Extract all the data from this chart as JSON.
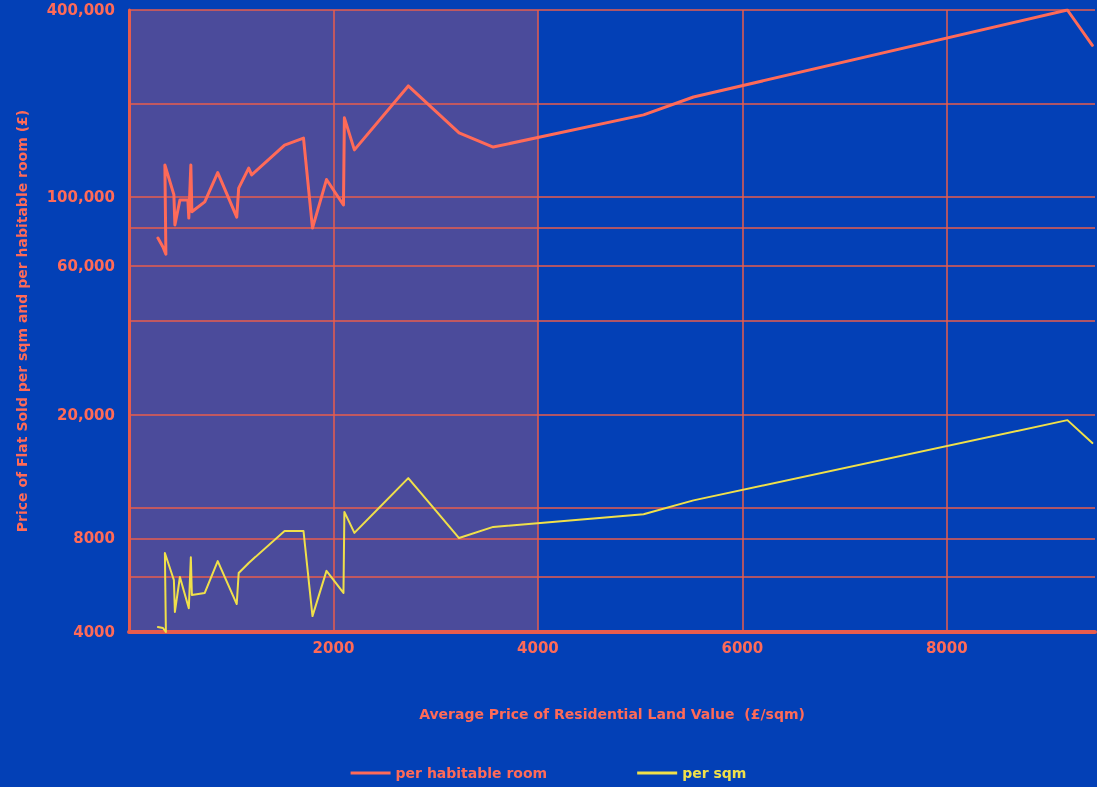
{
  "chart_data": {
    "type": "line",
    "xlabel": "Average Price of Residential Land Value  (£/sqm)",
    "ylabel": "Price of Flat Sold per sqm and per habitable room (£)",
    "log": "y",
    "grid": true,
    "legend": "bottom",
    "marker": "none",
    "line_style": "solid",
    "xlim": [
      0,
      9450
    ],
    "xticks": [
      2000,
      4000,
      6000,
      8000
    ],
    "ylim": [
      4000,
      400000
    ],
    "yticks": [
      4000,
      {
        "value": 6000,
        "label": null
      },
      8000,
      {
        "value": 10000,
        "label": null
      },
      {
        "value": 20000,
        "label": "20,000"
      },
      {
        "value": 40000,
        "label": null
      },
      {
        "value": 60000,
        "label": "60,000"
      },
      {
        "value": 80000,
        "label": null
      },
      {
        "value": 100000,
        "label": "100,000"
      },
      {
        "value": 200000,
        "label": null
      },
      {
        "value": 400000,
        "label": "400,000"
      }
    ],
    "bands": [
      {
        "axis": "x",
        "from": 0,
        "to": 4000,
        "color": "#4b4b9b"
      }
    ],
    "series": [
      {
        "name": "per habitable room",
        "color": "#ff6a58",
        "x": [
          283,
          332,
          361,
          351,
          439,
          449,
          498,
          576,
          585,
          605,
          615,
          741,
          868,
          1054,
          1073,
          1171,
          1200,
          1522,
          1707,
          1795,
          1932,
          2098,
          2107,
          2205,
          2732,
          3229,
          3563,
          5034,
          5522,
          9180,
          9424
        ],
        "values": [
          73900,
          69200,
          65600,
          127000,
          102000,
          81400,
          98000,
          98000,
          85700,
          127000,
          89800,
          96600,
          120000,
          86300,
          107000,
          124000,
          118000,
          147000,
          155000,
          79600,
          114000,
          94400,
          180000,
          142000,
          228000,
          161000,
          145000,
          184000,
          210000,
          400000,
          308000
        ]
      },
      {
        "name": "per sqm",
        "color": "#f0e04a",
        "x": [
          283,
          332,
          361,
          351,
          439,
          449,
          498,
          585,
          605,
          615,
          741,
          868,
          1054,
          1073,
          1171,
          1522,
          1707,
          1795,
          1932,
          2098,
          2107,
          2205,
          2732,
          3229,
          3563,
          5034,
          5522,
          9180,
          9424
        ],
        "values": [
          4150,
          4120,
          4000,
          7180,
          5880,
          4640,
          6010,
          4770,
          6960,
          5260,
          5340,
          6760,
          4920,
          6190,
          6670,
          8450,
          8450,
          4500,
          6290,
          5340,
          9730,
          8330,
          12500,
          8020,
          8710,
          9570,
          10600,
          19200,
          16200
        ]
      }
    ]
  }
}
